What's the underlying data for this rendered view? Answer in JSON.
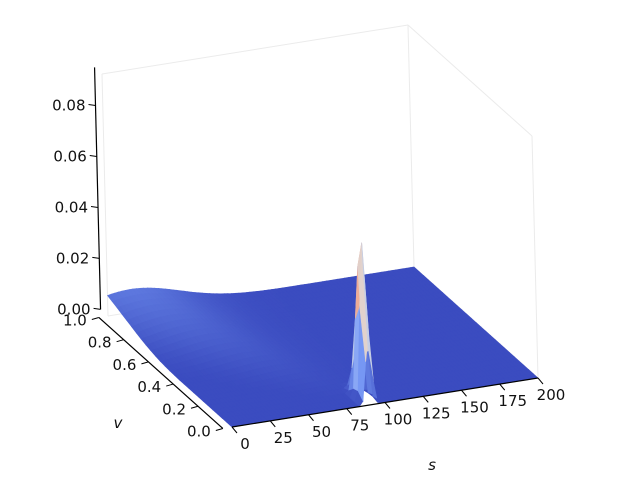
{
  "chart_data": {
    "type": "surface",
    "colormap": "coolwarm",
    "axes": {
      "x": {
        "label": "s",
        "lim": [
          0,
          200
        ],
        "ticks": [
          0,
          25,
          50,
          75,
          100,
          125,
          150,
          175,
          200
        ]
      },
      "y": {
        "label": "v",
        "lim": [
          0.0,
          1.0
        ],
        "ticks": [
          0.0,
          0.2,
          0.4,
          0.6,
          0.8,
          1.0
        ],
        "tick_labels": [
          "0.0",
          "0.2",
          "0.4",
          "0.6",
          "0.8",
          "1.0"
        ]
      },
      "z": {
        "label": "",
        "lim": [
          0,
          0.095
        ],
        "ticks": [
          0.0,
          0.02,
          0.04,
          0.06,
          0.08
        ],
        "tick_labels": [
          "0.00",
          "0.02",
          "0.04",
          "0.06",
          "0.08"
        ]
      }
    },
    "surface_features": {
      "peak": {
        "s": 90,
        "v": 0.05,
        "z": 0.067
      },
      "ridge_max_z": 0.009,
      "ridge_max_at": {
        "s": 15,
        "v": 1.0
      }
    },
    "grid": false,
    "legend": "none"
  }
}
